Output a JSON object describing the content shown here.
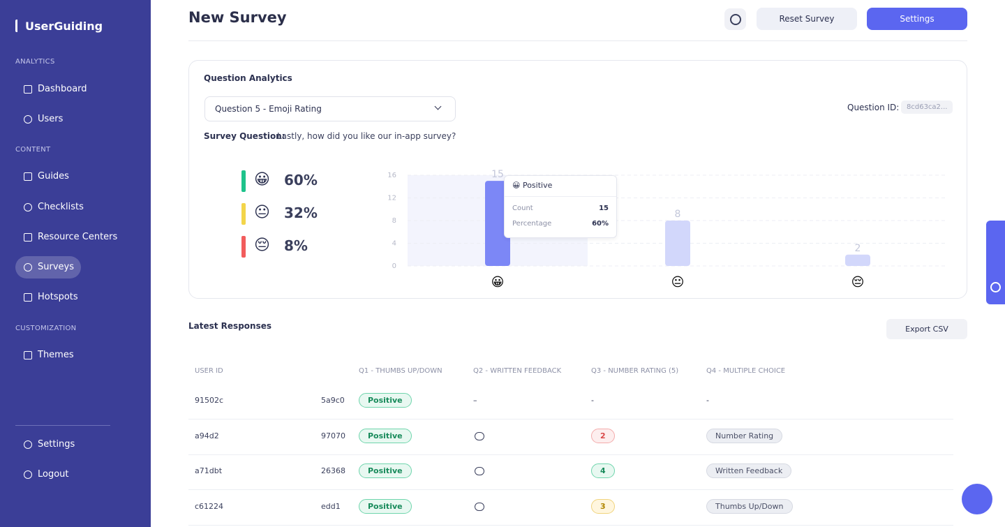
{
  "sidebar": {
    "brand": "UserGuiding",
    "sections": [
      {
        "title": "ANALYTICS",
        "items": [
          "Dashboard",
          "Users"
        ]
      },
      {
        "title": "CONTENT",
        "items": [
          "Guides",
          "Checklists",
          "Resource Centers",
          "Surveys",
          "Hotspots"
        ]
      },
      {
        "title": "CUSTOMIZATION",
        "items": [
          "Themes"
        ]
      }
    ],
    "footer": [
      "Settings",
      "Logout"
    ],
    "active": "Surveys"
  },
  "header": {
    "title": "New Survey",
    "buttons": [
      "Reset Survey",
      "Settings"
    ]
  },
  "analytics": {
    "title": "Question Analytics",
    "question_select": "Question 5 - Emoji Rating",
    "question_id_label": "Question ID:",
    "question_id": "8cd63ca2...",
    "survey_question_label": "Survey Question:",
    "survey_question": "Lastly, how did you like our in-app survey?",
    "summary": [
      {
        "emoji": "😀",
        "percent": "60%",
        "color": "#1ec38b"
      },
      {
        "emoji": "😐",
        "percent": "32%",
        "color": "#f3d54a"
      },
      {
        "emoji": "😔",
        "percent": "8%",
        "color": "#f25c5c"
      }
    ],
    "tooltip": {
      "title": "😀 Positive",
      "rows": [
        [
          "Count",
          "15"
        ],
        [
          "Percentage",
          "60%"
        ]
      ]
    }
  },
  "chart_data": {
    "type": "bar",
    "categories": [
      "😀",
      "😐",
      "😔"
    ],
    "values": [
      15,
      8,
      2
    ],
    "colors": [
      "#7c87f6",
      "#d2d7fb",
      "#d2d7fb"
    ],
    "ylim": [
      0,
      16
    ],
    "yticks": [
      0,
      4,
      8,
      12,
      16
    ],
    "grid": true
  },
  "responses": {
    "title": "Latest Responses",
    "export": "Export CSV",
    "headers": [
      "USER ID",
      "Q1 - THUMBS UP/DOWN",
      "Q2 - WRITTEN FEEDBACK",
      "Q3 - NUMBER RATING (5)",
      "Q4 - MULTIPLE CHOICE"
    ],
    "rows": [
      {
        "user_id": "91502c",
        "session": "5a9c0",
        "q1": "Positive",
        "q2": "–",
        "q3": "-",
        "q4": "-"
      },
      {
        "user_id": "a94d2",
        "session": "97070",
        "q1": "Positive",
        "q2": null,
        "q3": 2,
        "q4": "Number Rating"
      },
      {
        "user_id": "a71dbt",
        "session": "26368",
        "q1": "Positive",
        "q2": null,
        "q3": 4,
        "q4": "Written Feedback"
      },
      {
        "user_id": "c61224",
        "session": "edd1",
        "q1": "Positive",
        "q2": null,
        "q3": 3,
        "q4": "Thumbs Up/Down"
      }
    ]
  }
}
